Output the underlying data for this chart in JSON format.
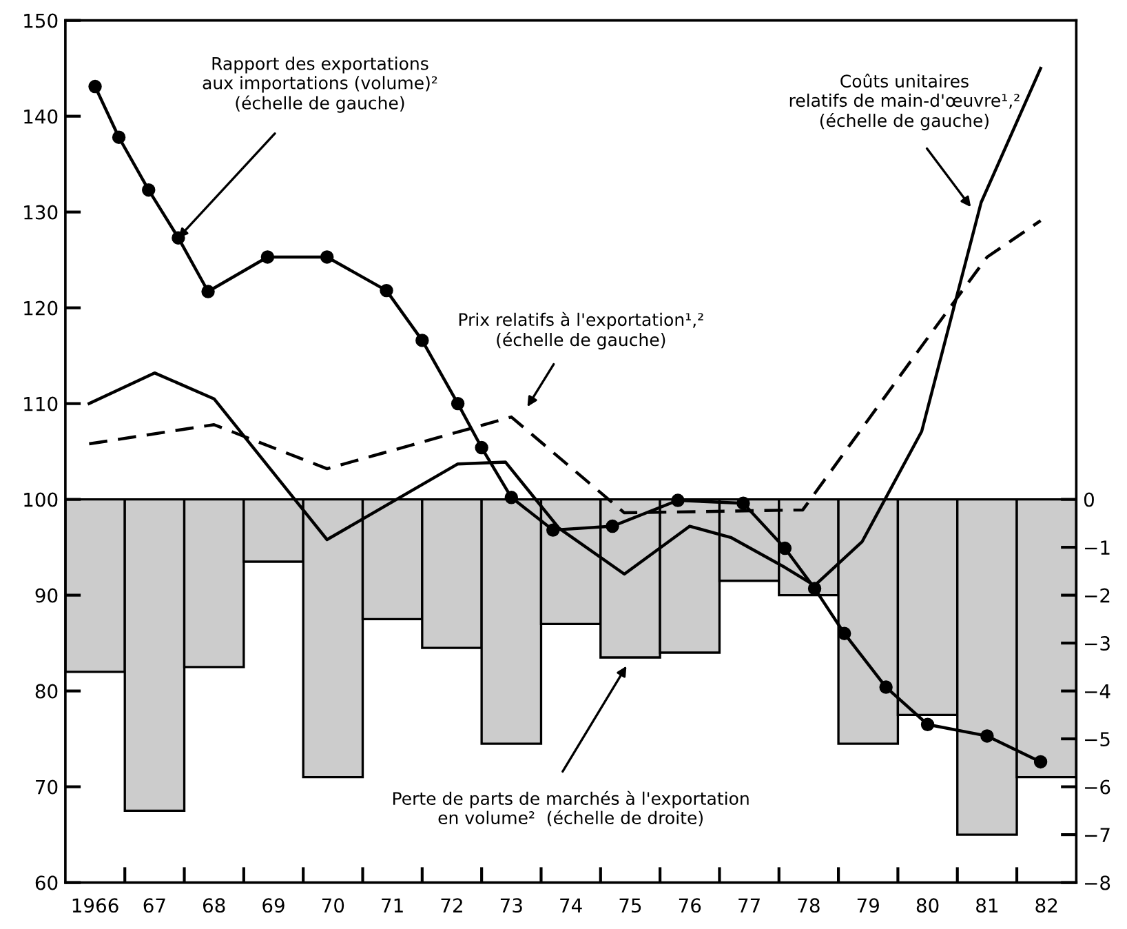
{
  "chart_data": {
    "type": "line",
    "xlim": [
      1965.5,
      1982.5
    ],
    "xticks": [
      {
        "value": 1966,
        "label": "1966"
      },
      {
        "value": 1966.5,
        "label": null
      },
      {
        "value": 1967,
        "label": "67"
      },
      {
        "value": 1967.5,
        "label": null
      },
      {
        "value": 1968,
        "label": "68"
      },
      {
        "value": 1968.5,
        "label": null
      },
      {
        "value": 1969,
        "label": "69"
      },
      {
        "value": 1969.5,
        "label": null
      },
      {
        "value": 1970,
        "label": "70"
      },
      {
        "value": 1970.5,
        "label": null
      },
      {
        "value": 1971,
        "label": "71"
      },
      {
        "value": 1971.5,
        "label": null
      },
      {
        "value": 1972,
        "label": "72"
      },
      {
        "value": 1972.5,
        "label": null
      },
      {
        "value": 1973,
        "label": "73"
      },
      {
        "value": 1973.5,
        "label": null
      },
      {
        "value": 1974,
        "label": "74"
      },
      {
        "value": 1974.5,
        "label": null
      },
      {
        "value": 1975,
        "label": "75"
      },
      {
        "value": 1975.5,
        "label": null
      },
      {
        "value": 1976,
        "label": "76"
      },
      {
        "value": 1976.5,
        "label": null
      },
      {
        "value": 1977,
        "label": "77"
      },
      {
        "value": 1977.5,
        "label": null
      },
      {
        "value": 1978,
        "label": "78"
      },
      {
        "value": 1978.5,
        "label": null
      },
      {
        "value": 1979,
        "label": "79"
      },
      {
        "value": 1979.5,
        "label": null
      },
      {
        "value": 1980,
        "label": "80"
      },
      {
        "value": 1980.5,
        "label": null
      },
      {
        "value": 1981,
        "label": "81"
      },
      {
        "value": 1981.5,
        "label": null
      },
      {
        "value": 1982,
        "label": "82"
      }
    ],
    "ylim": [
      60,
      150
    ],
    "yticks": [
      60,
      70,
      80,
      90,
      100,
      110,
      120,
      130,
      140,
      150
    ],
    "y2lim": [
      -8,
      10
    ],
    "y2ticks": [
      {
        "value": 0,
        "label": "0"
      },
      {
        "value": -1,
        "label": "−1"
      },
      {
        "value": -2,
        "label": "−2"
      },
      {
        "value": -3,
        "label": "−3"
      },
      {
        "value": -4,
        "label": "−4"
      },
      {
        "value": -5,
        "label": "−5"
      },
      {
        "value": -6,
        "label": "−6"
      },
      {
        "value": -7,
        "label": "−7"
      },
      {
        "value": -8,
        "label": "−8"
      }
    ],
    "grid": false,
    "legend": false,
    "series": [
      {
        "type": "bar",
        "axis": "y2",
        "color": "#cccccc",
        "x": [
          1966,
          1967,
          1968,
          1969,
          1970,
          1971,
          1972,
          1973,
          1974,
          1975,
          1976,
          1977,
          1978,
          1979,
          1980,
          1981,
          1982
        ],
        "values": [
          -3.6,
          -6.5,
          -3.5,
          -1.3,
          -5.8,
          -2.5,
          -3.1,
          -5.1,
          -2.6,
          -3.3,
          -3.2,
          -1.7,
          -2.0,
          -5.1,
          -4.5,
          -7.0,
          -5.8
        ]
      },
      {
        "color": "#000000",
        "marker": "circle",
        "line_style": "solid",
        "x": [
          1966.0,
          1966.4,
          1966.9,
          1967.4,
          1967.9,
          1968.9,
          1969.9,
          1970.9,
          1971.5,
          1972.1,
          1972.5,
          1973.0,
          1973.7,
          1974.7,
          1975.8,
          1976.9,
          1977.6,
          1978.1,
          1978.6,
          1979.3,
          1980.0,
          1981.0,
          1981.9
        ],
        "values": [
          143.1,
          137.8,
          132.3,
          127.3,
          121.7,
          125.3,
          125.3,
          121.8,
          116.6,
          110.0,
          105.4,
          100.2,
          96.8,
          97.2,
          99.9,
          99.6,
          94.9,
          90.7,
          86.0,
          80.4,
          76.5,
          75.3,
          72.6
        ]
      },
      {
        "color": "#000000",
        "marker": "none",
        "line_style": "solid",
        "x": [
          1965.9,
          1967.0,
          1968.0,
          1969.9,
          1972.1,
          1972.9,
          1973.8,
          1974.9,
          1976.0,
          1976.7,
          1977.6,
          1978.1,
          1978.9,
          1979.9,
          1980.9,
          1981.9
        ],
        "values": [
          110.0,
          113.2,
          110.5,
          95.8,
          103.7,
          103.9,
          97.0,
          92.2,
          97.2,
          96.0,
          92.9,
          91.0,
          95.6,
          107.1,
          131.0,
          145.0
        ]
      },
      {
        "color": "#000000",
        "marker": "none",
        "line_style": "dashed",
        "x": [
          1965.9,
          1968.0,
          1969.9,
          1973.0,
          1974.9,
          1977.9,
          1979.9,
          1981.0,
          1981.9
        ],
        "values": [
          105.8,
          107.8,
          103.2,
          108.6,
          98.6,
          98.9,
          116.0,
          125.3,
          129.1
        ]
      }
    ],
    "annotations": [
      {
        "text": "Rapport des exportations\naux importations (volume)²\n(échelle de gauche)",
        "x": 1967.4,
        "y": 127.3
      },
      "Prix relatifs à l'exportation¹,²\n(échelle de gauche)",
      "Coûts unitaires\nrelatifs de main-d'œuvre¹,²\n(échelle de gauche)",
      "Perte de parts de marchés à l'exportation\nen volume²  (échelle de droite)"
    ]
  }
}
